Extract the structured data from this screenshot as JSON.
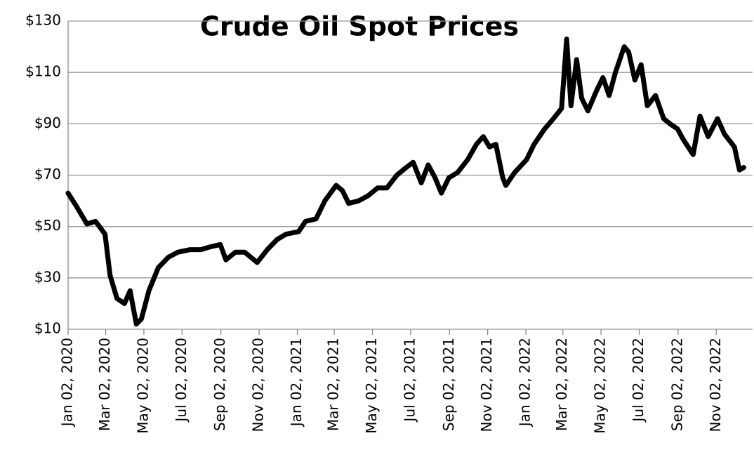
{
  "chart_data": {
    "type": "line",
    "title": "Crude Oil Spot Prices",
    "xlim": [
      "2020-01-02",
      "2022-12-30"
    ],
    "xticks": [
      {
        "value": "2020-01-02",
        "label": "Jan 02, 2020"
      },
      {
        "value": "2020-03-02",
        "label": "Mar 02, 2020"
      },
      {
        "value": "2020-05-02",
        "label": "May 02, 2020"
      },
      {
        "value": "2020-07-02",
        "label": "Jul 02, 2020"
      },
      {
        "value": "2020-09-02",
        "label": "Sep 02, 2020"
      },
      {
        "value": "2020-11-02",
        "label": "Nov 02, 2020"
      },
      {
        "value": "2021-01-02",
        "label": "Jan 02, 2021"
      },
      {
        "value": "2021-03-02",
        "label": "Mar 02, 2021"
      },
      {
        "value": "2021-05-02",
        "label": "May 02, 2021"
      },
      {
        "value": "2021-07-02",
        "label": "Jul 02, 2021"
      },
      {
        "value": "2021-09-02",
        "label": "Sep 02, 2021"
      },
      {
        "value": "2021-11-02",
        "label": "Nov 02, 2021"
      },
      {
        "value": "2022-01-02",
        "label": "Jan 02, 2022"
      },
      {
        "value": "2022-03-02",
        "label": "Mar 02, 2022"
      },
      {
        "value": "2022-05-02",
        "label": "May 02, 2022"
      },
      {
        "value": "2022-07-02",
        "label": "Jul 02, 2022"
      },
      {
        "value": "2022-09-02",
        "label": "Sep 02, 2022"
      },
      {
        "value": "2022-11-02",
        "label": "Nov 02, 2022"
      }
    ],
    "ylim": [
      10,
      130
    ],
    "yticks": [
      {
        "value": 10,
        "label": "$10"
      },
      {
        "value": 30,
        "label": "$30"
      },
      {
        "value": 50,
        "label": "$50"
      },
      {
        "value": 70,
        "label": "$70"
      },
      {
        "value": 90,
        "label": "$90"
      },
      {
        "value": 110,
        "label": "$110"
      },
      {
        "value": 130,
        "label": "$130"
      }
    ],
    "grid": true,
    "x": [
      "2020-01-02",
      "2020-01-15",
      "2020-02-01",
      "2020-02-15",
      "2020-03-01",
      "2020-03-09",
      "2020-03-20",
      "2020-04-01",
      "2020-04-10",
      "2020-04-20",
      "2020-04-28",
      "2020-05-10",
      "2020-05-25",
      "2020-06-10",
      "2020-06-25",
      "2020-07-15",
      "2020-08-01",
      "2020-08-15",
      "2020-09-01",
      "2020-09-10",
      "2020-09-25",
      "2020-10-10",
      "2020-10-30",
      "2020-11-15",
      "2020-12-01",
      "2020-12-15",
      "2021-01-04",
      "2021-01-15",
      "2021-02-01",
      "2021-02-15",
      "2021-03-05",
      "2021-03-15",
      "2021-03-25",
      "2021-04-10",
      "2021-04-25",
      "2021-05-10",
      "2021-05-25",
      "2021-06-10",
      "2021-06-25",
      "2021-07-06",
      "2021-07-19",
      "2021-07-30",
      "2021-08-10",
      "2021-08-20",
      "2021-09-01",
      "2021-09-15",
      "2021-10-01",
      "2021-10-15",
      "2021-10-26",
      "2021-11-05",
      "2021-11-15",
      "2021-11-26",
      "2021-12-01",
      "2021-12-15",
      "2022-01-03",
      "2022-01-15",
      "2022-02-01",
      "2022-02-15",
      "2022-02-28",
      "2022-03-08",
      "2022-03-15",
      "2022-03-24",
      "2022-04-01",
      "2022-04-11",
      "2022-04-25",
      "2022-05-05",
      "2022-05-15",
      "2022-05-25",
      "2022-06-08",
      "2022-06-15",
      "2022-06-25",
      "2022-07-05",
      "2022-07-15",
      "2022-07-28",
      "2022-08-10",
      "2022-08-20",
      "2022-09-01",
      "2022-09-10",
      "2022-09-26",
      "2022-10-07",
      "2022-10-20",
      "2022-11-04",
      "2022-11-15",
      "2022-12-01",
      "2022-12-09",
      "2022-12-16"
    ],
    "series": [
      {
        "color": "#000000",
        "values": [
          63,
          58,
          51,
          52,
          47,
          31,
          22,
          20,
          25,
          12,
          14,
          25,
          34,
          38,
          40,
          41,
          41,
          42,
          43,
          37,
          40,
          40,
          36,
          41,
          45,
          47,
          48,
          52,
          53,
          60,
          66,
          64,
          59,
          60,
          62,
          65,
          65,
          70,
          73,
          75,
          67,
          74,
          69,
          63,
          69,
          71,
          76,
          82,
          85,
          81,
          82,
          69,
          66,
          71,
          76,
          82,
          88,
          92,
          96,
          123,
          97,
          115,
          100,
          95,
          103,
          108,
          101,
          110,
          120,
          118,
          107,
          113,
          97,
          101,
          92,
          90,
          88,
          84,
          78,
          93,
          85,
          92,
          86,
          81,
          72,
          73
        ]
      }
    ]
  }
}
